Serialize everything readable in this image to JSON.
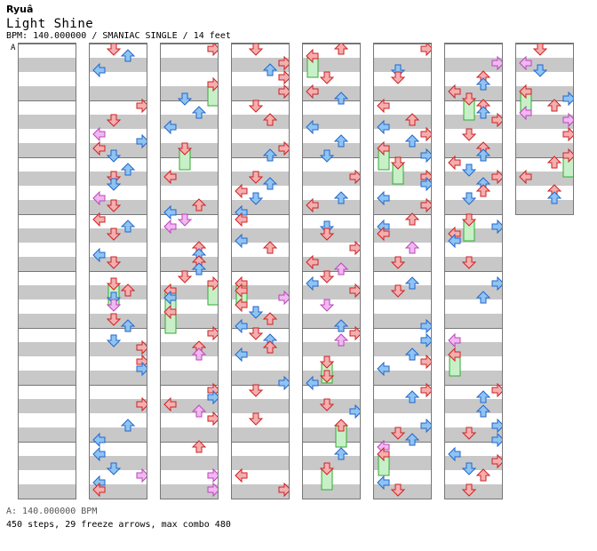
{
  "header": {
    "artist": "Ryuâ",
    "title": "Light Shine",
    "info": "BPM: 140.000000 / SMANIAC SINGLE / 14 feet",
    "marker": "A"
  },
  "footer": {
    "bpm_line": "A: 140.000000 BPM",
    "stats": "450 steps, 29 freeze arrows, max combo 480"
  },
  "colors": {
    "stripe": "#c8c8c8",
    "quarter_arrow": "#f5aeb0",
    "quarter_outline": "#cc2222",
    "eighth_arrow": "#8fc4f2",
    "eighth_outline": "#2266cc",
    "sixteenth_arrow": "#f0b8f0",
    "sixteenth_outline": "#bb44bb",
    "freeze_body": "#c8f0c8",
    "freeze_outline": "#33aa33"
  },
  "legend_icons": [
    "left-arrow-icon",
    "down-arrow-icon",
    "up-arrow-icon",
    "right-arrow-icon",
    "freeze-arrow-icon"
  ],
  "columns": [
    {
      "measures": 8
    },
    {
      "measures": 8
    },
    {
      "measures": 8
    },
    {
      "measures": 8
    },
    {
      "measures": 8
    },
    {
      "measures": 8
    },
    {
      "measures": 8
    },
    {
      "measures": 3
    }
  ]
}
